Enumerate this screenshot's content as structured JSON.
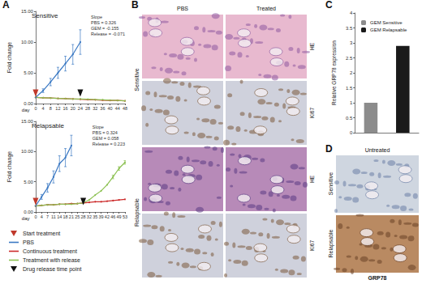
{
  "panel_labels": [
    "A",
    "B",
    "C",
    "D"
  ],
  "chart_data": [
    {
      "type": "line",
      "title": "Sensitive",
      "x_label": "day",
      "y_label": "Fold change",
      "grid": false,
      "categories": [
        0,
        4,
        8,
        12,
        16,
        20,
        24,
        28,
        32,
        36,
        40,
        44,
        48
      ],
      "series": [
        {
          "name": "PBS",
          "color": "#3a78c3",
          "values": [
            1,
            2.1,
            3.5,
            5.0,
            6.5,
            8.0,
            10.0,
            null,
            null,
            null,
            null,
            null,
            null
          ],
          "errors": [
            0,
            0.3,
            0.6,
            0.9,
            1.2,
            1.6,
            2.0,
            null,
            null,
            null,
            null,
            null,
            null
          ]
        },
        {
          "name": "Continuous treatment",
          "color": "#cc2a2a",
          "values": [
            1,
            0.95,
            0.9,
            0.85,
            0.8,
            0.75,
            0.7,
            0.65,
            0.6,
            0.55,
            0.5,
            0.5,
            0.45
          ]
        },
        {
          "name": "Treatment with release",
          "color": "#8cc152",
          "values": [
            1,
            0.95,
            0.9,
            0.85,
            0.8,
            0.75,
            0.75,
            0.7,
            0.65,
            0.6,
            0.55,
            0.5,
            0.45
          ]
        }
      ],
      "ylim": [
        0,
        15
      ],
      "yticks": [
        {
          "value": 0,
          "label": "0.00"
        },
        {
          "value": 5,
          "label": "5.00"
        },
        {
          "value": 10,
          "label": "10.00"
        },
        {
          "value": 15,
          "label": "15.00"
        }
      ],
      "annotations": [
        "Slope",
        "PBS = 0.326",
        "GEM = -0.155",
        "Release = -0.071"
      ],
      "markers": [
        {
          "label": "Start treatment",
          "day": 0,
          "color": "#c0392b"
        },
        {
          "label": "Drug release time point",
          "day": 24,
          "color": "#111111"
        }
      ]
    },
    {
      "type": "line",
      "title": "Relapsable",
      "x_label": "day",
      "y_label": "Fold change",
      "grid": false,
      "categories": [
        0,
        4,
        7,
        11,
        14,
        18,
        21,
        25,
        28,
        32,
        35,
        39,
        42,
        46,
        49,
        53
      ],
      "series": [
        {
          "name": "PBS",
          "color": "#3a78c3",
          "values": [
            1,
            2.5,
            4.0,
            5.8,
            8.0,
            9.0,
            11.0,
            null,
            null,
            null,
            null,
            null,
            null,
            null,
            null,
            null
          ],
          "errors": [
            0,
            0.4,
            0.7,
            1.0,
            1.3,
            1.5,
            1.7,
            null,
            null,
            null,
            null,
            null,
            null,
            null,
            null,
            null
          ]
        },
        {
          "name": "Continuous treatment",
          "color": "#cc2a2a",
          "values": [
            1,
            1.1,
            1.2,
            1.2,
            1.3,
            1.3,
            1.4,
            1.4,
            1.5,
            1.6,
            1.7,
            1.7,
            1.8,
            1.9,
            2.0,
            2.1
          ]
        },
        {
          "name": "Treatment with release",
          "color": "#8cc152",
          "values": [
            1,
            1.1,
            1.2,
            1.2,
            1.3,
            1.3,
            1.3,
            1.4,
            1.5,
            2.0,
            2.8,
            3.5,
            4.5,
            5.8,
            7.2,
            8.2
          ],
          "errors": [
            null,
            null,
            null,
            null,
            null,
            null,
            null,
            null,
            null,
            null,
            null,
            null,
            null,
            0.3,
            0.3,
            0.3
          ]
        }
      ],
      "ylim": [
        0,
        15
      ],
      "yticks": [
        {
          "value": 0,
          "label": "0.00"
        },
        {
          "value": 5,
          "label": "5.00"
        },
        {
          "value": 10,
          "label": "10.00"
        },
        {
          "value": 15,
          "label": "15.00"
        }
      ],
      "annotations": [
        "Slope",
        "PBS = 0.324",
        "GEM = 0.058",
        "Release = 0.223"
      ],
      "markers": [
        {
          "label": "Start treatment",
          "day": 0,
          "color": "#c0392b"
        },
        {
          "label": "Drug release time point",
          "day": 28,
          "color": "#111111"
        }
      ]
    },
    {
      "type": "bar",
      "y_label": "Relative GRP78 expression",
      "grid": false,
      "categories": [
        "GEM Sensitive",
        "GEM Relapsable"
      ],
      "values": [
        1,
        2.9
      ],
      "colors": [
        "#8c8c8c",
        "#1a1a1a"
      ],
      "ylim": [
        0,
        4
      ],
      "yticks": [
        0,
        0.5,
        1,
        1.5,
        2,
        2.5,
        3,
        3.5,
        4
      ],
      "legend": "upper left",
      "tick_labels": "y"
    }
  ],
  "panel_B": {
    "columns": [
      "PBS",
      "Treated"
    ],
    "groups": [
      "Sensitive",
      "Relapsable"
    ],
    "stains": [
      "HE",
      "Ki67"
    ]
  },
  "panel_D": {
    "column": "Untreated",
    "rows": [
      "Sensitive",
      "Relapsable"
    ],
    "stain": "GRP78"
  }
}
